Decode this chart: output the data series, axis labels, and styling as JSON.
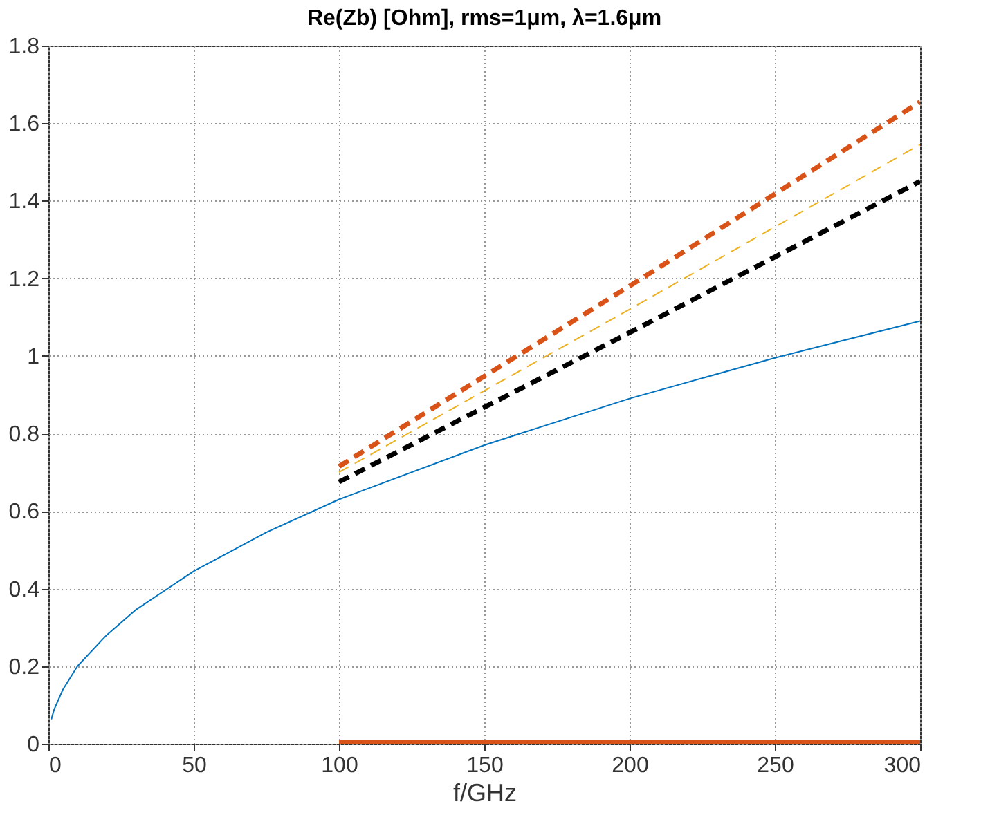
{
  "chart_data": {
    "type": "line",
    "title": "Re(Zb) [Ohm], rms=1μm, λ=1.6μm",
    "xlabel": "f/GHz",
    "xlim": [
      0,
      300
    ],
    "xticks": [
      0,
      50,
      100,
      150,
      200,
      250,
      300
    ],
    "ylim": [
      0,
      1.8
    ],
    "yticks": [
      0,
      0.2,
      0.4,
      0.6,
      0.8,
      1,
      1.2,
      1.4,
      1.6,
      1.8
    ],
    "grid": true,
    "series": [
      {
        "color": "#0072bd",
        "line_style": "solid",
        "x": [
          1,
          2,
          5,
          10,
          20,
          30,
          50,
          75,
          100,
          150,
          200,
          250,
          300
        ],
        "values": [
          0.063,
          0.089,
          0.14,
          0.2,
          0.28,
          0.345,
          0.445,
          0.545,
          0.63,
          0.77,
          0.89,
          0.995,
          1.09
        ]
      },
      {
        "color": "#d95319",
        "line_style": "dashed",
        "x": [
          100,
          200,
          300
        ],
        "values": [
          0.715,
          1.18,
          1.655
        ]
      },
      {
        "color": "#edb120",
        "line_style": "dashed",
        "x": [
          100,
          200,
          300
        ],
        "values": [
          0.7,
          1.12,
          1.545
        ]
      },
      {
        "color": "#000000",
        "line_style": "dashed",
        "x": [
          100,
          200,
          300
        ],
        "values": [
          0.675,
          1.06,
          1.45
        ]
      },
      {
        "color": "#d95319",
        "line_style": "solid",
        "x": [
          100,
          150,
          200,
          250,
          300
        ],
        "values": [
          0.003,
          0.003,
          0.003,
          0.003,
          0.003
        ]
      }
    ]
  }
}
